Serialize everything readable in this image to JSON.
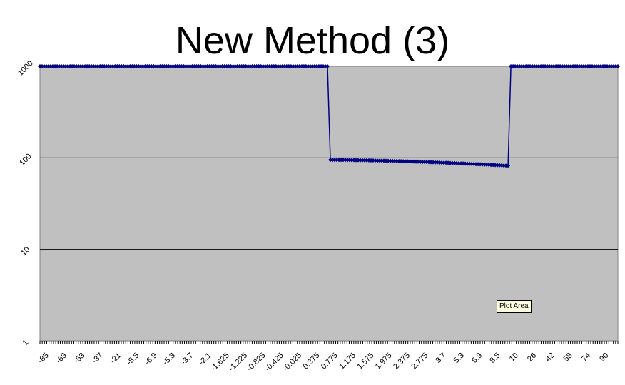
{
  "chart_data": {
    "type": "line",
    "title": "New Method (3)",
    "xlabel": "",
    "ylabel": "",
    "y_scale": "log",
    "ylim": [
      1,
      1000
    ],
    "y_ticks": [
      "1",
      "10",
      "100",
      "1000"
    ],
    "grid": true,
    "legend": "none",
    "x_tick_labels": [
      "-85",
      "-69",
      "-53",
      "-37",
      "-21",
      "-8.5",
      "-6.9",
      "-5.3",
      "-3.7",
      "-2.1",
      "-1.625",
      "-1.225",
      "-0.825",
      "-0.425",
      "-0.025",
      "0.375",
      "0.775",
      "1.175",
      "1.575",
      "1.975",
      "2.375",
      "2.775",
      "3.7",
      "5.3",
      "6.9",
      "8.5",
      "10",
      "26",
      "42",
      "58",
      "74",
      "90"
    ],
    "series": [
      {
        "segments": [
          {
            "x_from": "-85",
            "x_to": "0.375",
            "y_start": 1000,
            "y_end": 1000
          },
          {
            "x_from": "0.775",
            "x_to": "8.5",
            "y_start": 95,
            "y_end": 82
          },
          {
            "x_from": "10",
            "x_to": "90",
            "y_start": 1000,
            "y_end": 1000
          }
        ],
        "color": "#000080"
      }
    ],
    "plot_background": "#c0c0c0",
    "gridline_color": "#000000"
  },
  "tooltip": "Plot Area"
}
